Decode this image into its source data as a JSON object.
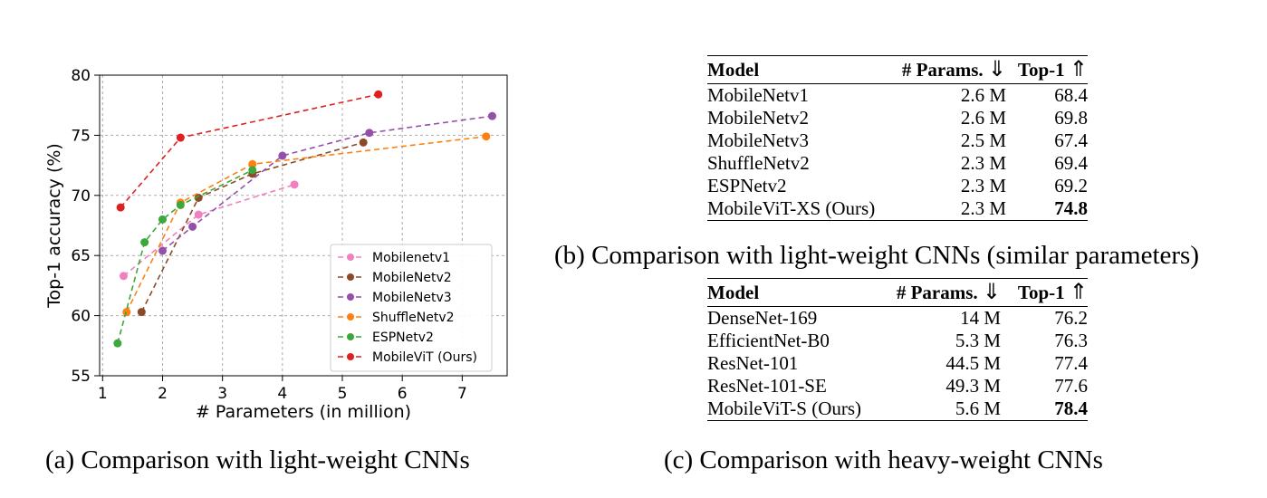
{
  "chart_data": {
    "type": "line",
    "xlabel": "# Parameters (in million)",
    "ylabel": "Top-1 accuracy (%)",
    "xlim": [
      0.95,
      7.75
    ],
    "ylim": [
      55,
      80
    ],
    "xticks": [
      "1",
      "2",
      "3",
      "4",
      "5",
      "6",
      "7"
    ],
    "yticks": [
      "55",
      "60",
      "65",
      "70",
      "75",
      "80"
    ],
    "grid": true,
    "legend_position": "lower-right",
    "series": [
      {
        "name": "Mobilenetv1",
        "color": "#f080c0",
        "x": [
          1.35,
          2.6,
          4.2
        ],
        "y": [
          63.3,
          68.4,
          70.9
        ]
      },
      {
        "name": "MobileNetv2",
        "color": "#8c4a28",
        "x": [
          1.65,
          2.6,
          3.5,
          5.35
        ],
        "y": [
          60.3,
          69.8,
          71.8,
          74.4
        ]
      },
      {
        "name": "MobileNetv3",
        "color": "#9450a8",
        "x": [
          2.0,
          2.5,
          4.0,
          5.45,
          7.5
        ],
        "y": [
          65.4,
          67.4,
          73.3,
          75.2,
          76.6
        ]
      },
      {
        "name": "ShuffleNetv2",
        "color": "#ff8010",
        "x": [
          1.4,
          2.3,
          3.5,
          7.4
        ],
        "y": [
          60.3,
          69.4,
          72.6,
          74.9
        ]
      },
      {
        "name": "ESPNetv2",
        "color": "#3aa83a",
        "x": [
          1.25,
          1.7,
          2.0,
          2.3,
          3.5
        ],
        "y": [
          57.7,
          66.1,
          68.0,
          69.2,
          72.1
        ]
      },
      {
        "name": "MobileViT (Ours)",
        "color": "#e02020",
        "x": [
          1.3,
          2.3,
          5.6
        ],
        "y": [
          69.0,
          74.8,
          78.4
        ]
      }
    ]
  },
  "captions": {
    "a": "(a) Comparison with light-weight CNNs",
    "b": "(b) Comparison with light-weight CNNs (similar parameters)",
    "c": "(c) Comparison with heavy-weight CNNs"
  },
  "table_headers": {
    "model": "Model",
    "params": "# Params.",
    "params_arrow": "⇓",
    "top1": "Top-1",
    "top1_arrow": "⇑"
  },
  "table_b": [
    {
      "model": "MobileNetv1",
      "params": "2.6 M",
      "top1": "68.4"
    },
    {
      "model": "MobileNetv2",
      "params": "2.6 M",
      "top1": "69.8"
    },
    {
      "model": "MobileNetv3",
      "params": "2.5 M",
      "top1": "67.4"
    },
    {
      "model": "ShuffleNetv2",
      "params": "2.3 M",
      "top1": "69.4"
    },
    {
      "model": "ESPNetv2",
      "params": "2.3 M",
      "top1": "69.2"
    },
    {
      "model": "MobileViT-XS (Ours)",
      "params": "2.3 M",
      "top1": "74.8",
      "bold": true
    }
  ],
  "table_c": [
    {
      "model": "DenseNet-169",
      "params": "14 M",
      "top1": "76.2"
    },
    {
      "model": "EfficientNet-B0",
      "params": "5.3 M",
      "top1": "76.3"
    },
    {
      "model": "ResNet-101",
      "params": "44.5 M",
      "top1": "77.4"
    },
    {
      "model": "ResNet-101-SE",
      "params": "49.3 M",
      "top1": "77.6"
    },
    {
      "model": "MobileViT-S (Ours)",
      "params": "5.6 M",
      "top1": "78.4",
      "bold": true
    }
  ]
}
